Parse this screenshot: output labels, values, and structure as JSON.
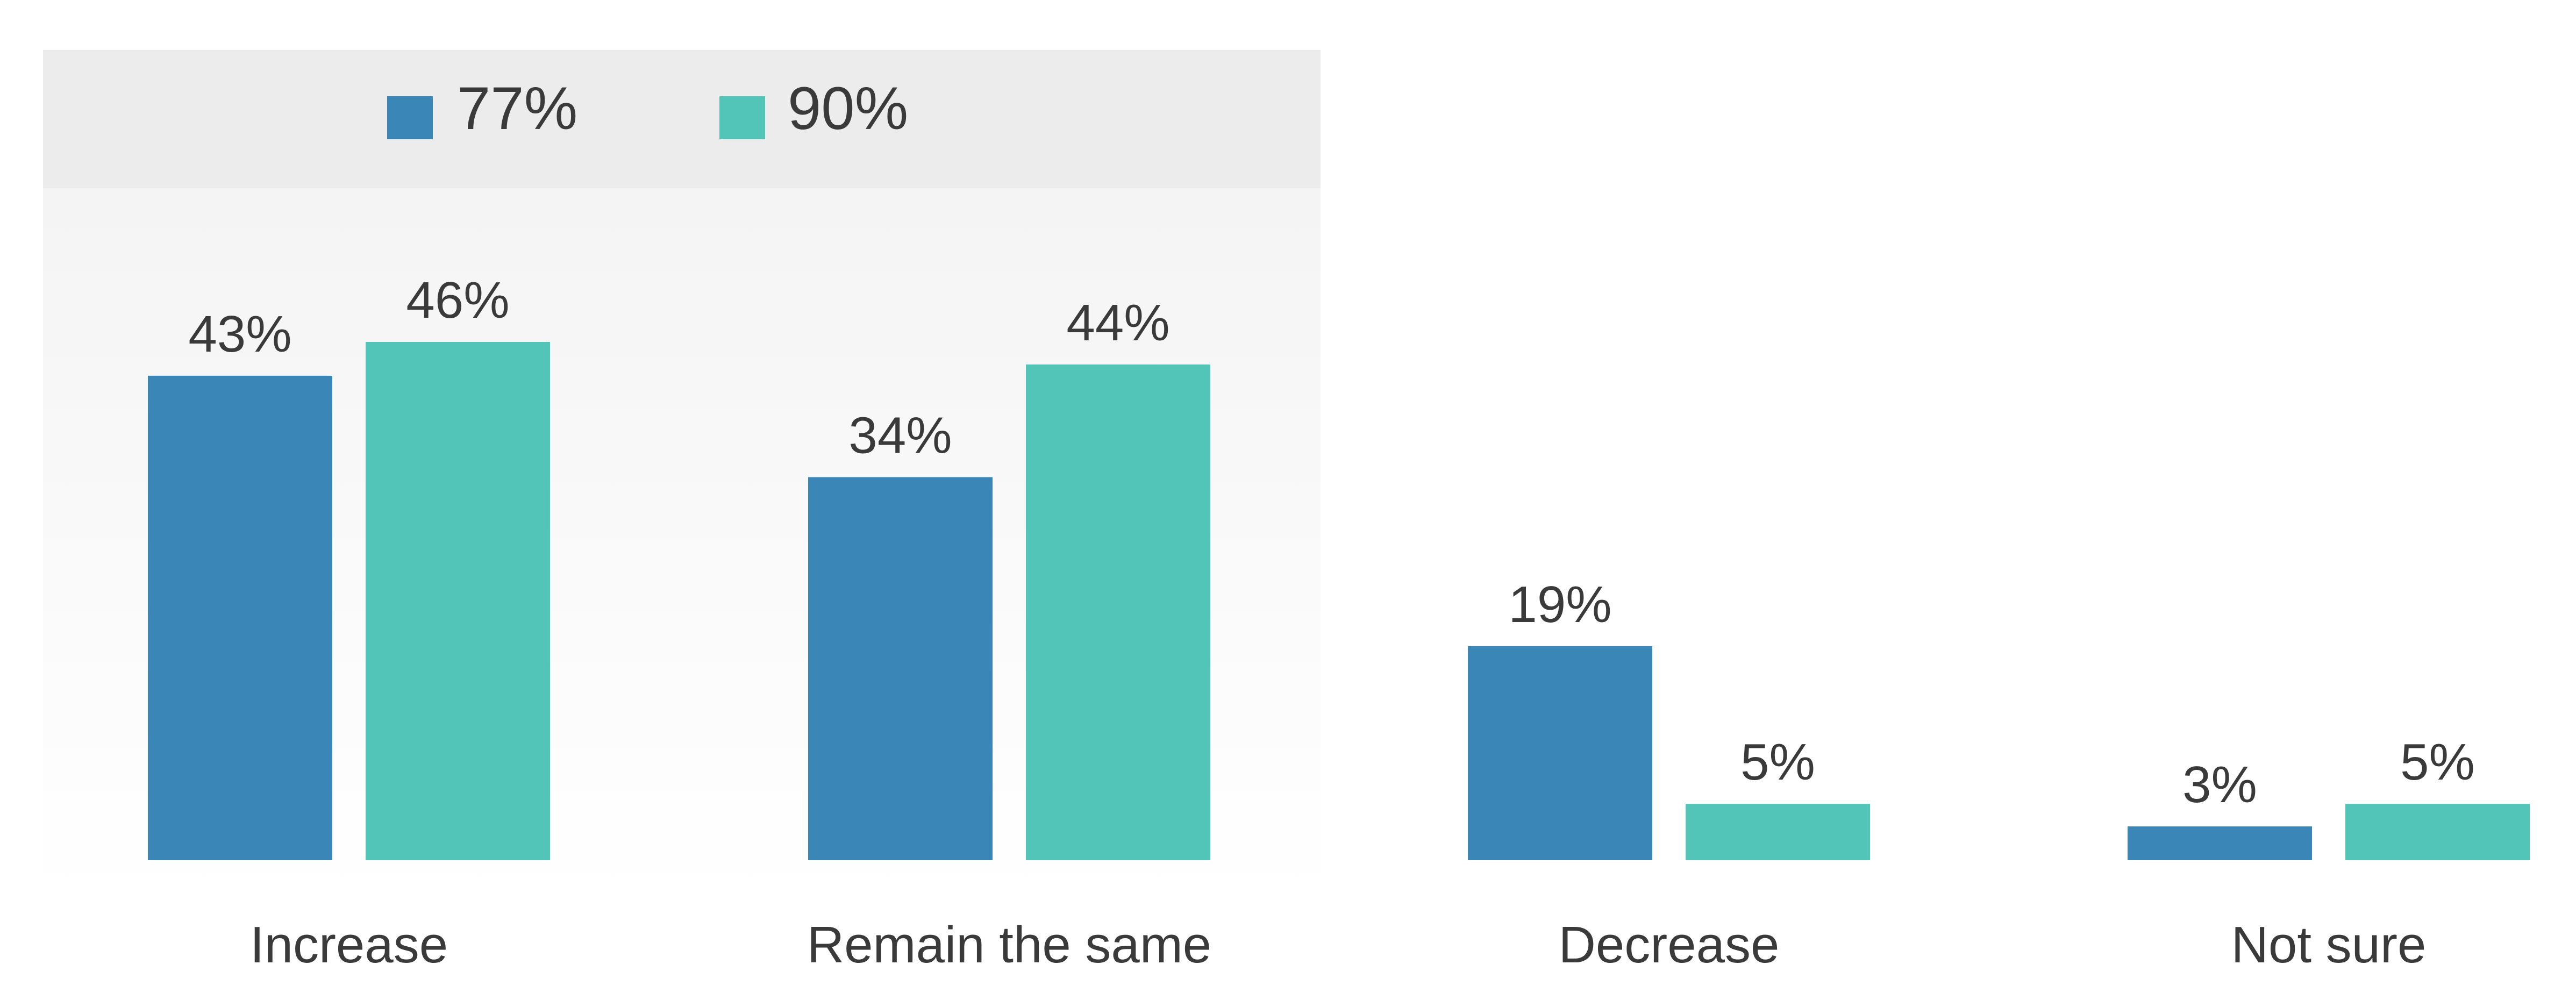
{
  "chart_data": {
    "type": "bar",
    "categories": [
      "Increase",
      "Remain the same",
      "Decrease",
      "Not sure"
    ],
    "series": [
      {
        "name": "77%",
        "color": "#3a87b7",
        "values": [
          43,
          34,
          19,
          3
        ],
        "labels": [
          "43%",
          "34%",
          "19%",
          "3%"
        ]
      },
      {
        "name": "90%",
        "color": "#52c5b8",
        "values": [
          46,
          44,
          5,
          5
        ],
        "labels": [
          "46%",
          "44%",
          "5%",
          "5%"
        ]
      }
    ],
    "value_unit": "%",
    "ylim": [
      0,
      46
    ],
    "grid": false,
    "legend_position": "top-left",
    "legend_background": "#ececec",
    "plot_panel_background": "#f5f5f5",
    "title": "",
    "xlabel": "",
    "ylabel": ""
  }
}
